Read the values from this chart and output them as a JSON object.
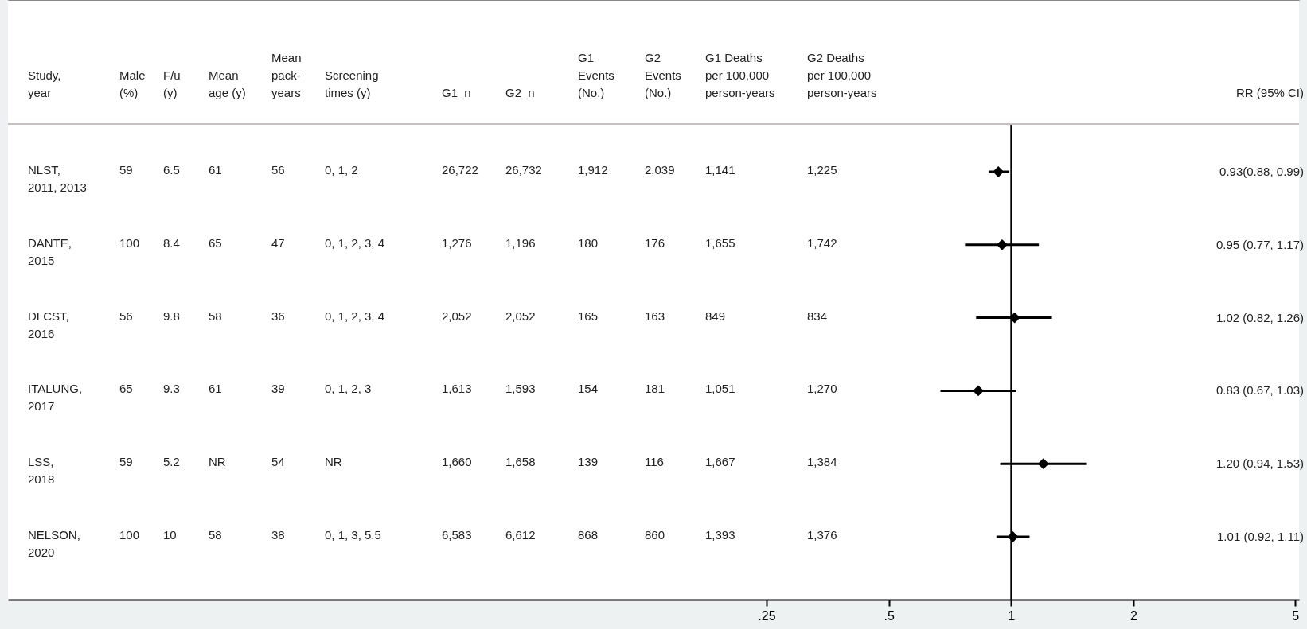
{
  "chart_data": {
    "type": "scatter",
    "orientation": "horizontal",
    "marker": "diamond",
    "log": "x",
    "grid": false,
    "categories": [
      "NLST,\n2011, 2013",
      "DANTE,\n2015",
      "DLCST,\n2016",
      "ITALUNG,\n2017",
      "LSS,\n2018",
      "NELSON,\n2020"
    ],
    "series": [
      {
        "color": "#000000",
        "values": [
          0.93,
          0.95,
          1.02,
          0.83,
          1.2,
          1.01
        ],
        "errors": [
          [
            0.88,
            0.99
          ],
          [
            0.77,
            1.17
          ],
          [
            0.82,
            1.26
          ],
          [
            0.67,
            1.03
          ],
          [
            0.94,
            1.53
          ],
          [
            0.92,
            1.11
          ]
        ]
      }
    ],
    "xlim": [
      0.0034,
      5.11
    ],
    "xticks": [
      {
        "value": 0.25,
        "label": ".25"
      },
      {
        "value": 0.5,
        "label": ".5"
      },
      1,
      2,
      5
    ],
    "ref_lines": [
      {
        "axis": "x",
        "value": 1,
        "color": "#000000"
      }
    ],
    "annotations": [
      "Study,\nyear",
      "Male\n(%)",
      "F/u\n(y)",
      "Mean\nage (y)",
      "Mean\npack-\nyears",
      "Screening\ntimes (y)",
      "G1_n",
      "G2_n",
      "G1\nEvents\n(No.)",
      "G2\nEvents\n(No.)",
      "G1 Deaths\nper 100,000\nperson-years",
      "G2 Deaths\nper 100,000\nperson-years",
      "RR (95% CI)",
      "59",
      "6.5",
      "61",
      "56",
      "0, 1, 2",
      "26,722",
      "26,732",
      "1,912",
      "2,039",
      "1,141",
      "1,225",
      "0.93(0.88, 0.99)",
      "100",
      "8.4",
      "65",
      "47",
      "0, 1, 2, 3, 4",
      "1,276",
      "1,196",
      "180",
      "176",
      "1,655",
      "1,742",
      "0.95 (0.77, 1.17)",
      "56",
      "9.8",
      "58",
      "36",
      "0, 1, 2, 3, 4",
      "2,052",
      "2,052",
      "165",
      "163",
      "849",
      "834",
      "1.02 (0.82, 1.26)",
      "65",
      "9.3",
      "61",
      "39",
      "0, 1, 2, 3",
      "1,613",
      "1,593",
      "154",
      "181",
      "1,051",
      "1,270",
      "0.83 (0.67, 1.03)",
      "59",
      "5.2",
      "NR",
      "54",
      "NR",
      "1,660",
      "1,658",
      "139",
      "116",
      "1,667",
      "1,384",
      "1.20 (0.94, 1.53)",
      "100",
      "10",
      "58",
      "38",
      "0, 1, 3, 5.5",
      "6,583",
      "6,612",
      "868",
      "860",
      "1,393",
      "1,376",
      "1.01 (0.92, 1.11)"
    ]
  }
}
